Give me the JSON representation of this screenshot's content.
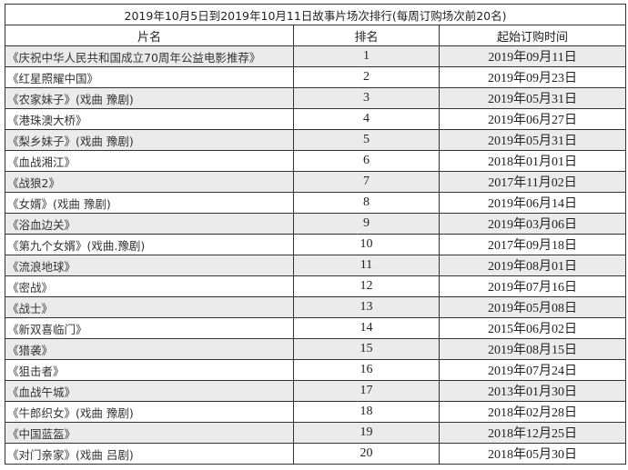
{
  "title": "2019年10月5日到2019年10月11日故事片场次排行(每周订购场次前20名)",
  "columns": [
    "片名",
    "排名",
    "起始订购时间"
  ],
  "rows": [
    {
      "name": "《庆祝中华人民共和国成立70周年公益电影推荐》",
      "rank": "1",
      "date": "2019年09月11日"
    },
    {
      "name": "《红星照耀中国》",
      "rank": "2",
      "date": "2019年09月23日"
    },
    {
      "name": "《农家妹子》(戏曲 豫剧)",
      "rank": "3",
      "date": "2019年05月31日"
    },
    {
      "name": "《港珠澳大桥》",
      "rank": "4",
      "date": "2019年06月27日"
    },
    {
      "name": "《梨乡妹子》(戏曲 豫剧)",
      "rank": "5",
      "date": "2019年05月31日"
    },
    {
      "name": "《血战湘江》",
      "rank": "6",
      "date": "2018年01月01日"
    },
    {
      "name": "《战狼2》",
      "rank": "7",
      "date": "2017年11月02日"
    },
    {
      "name": "《女婿》(戏曲 豫剧)",
      "rank": "8",
      "date": "2019年06月14日"
    },
    {
      "name": "《浴血边关》",
      "rank": "9",
      "date": "2019年03月06日"
    },
    {
      "name": "《第九个女婿》(戏曲.豫剧)",
      "rank": "10",
      "date": "2017年09月18日"
    },
    {
      "name": "《流浪地球》",
      "rank": "11",
      "date": "2019年08月01日"
    },
    {
      "name": "《密战》",
      "rank": "12",
      "date": "2019年07月16日"
    },
    {
      "name": "《战士》",
      "rank": "13",
      "date": "2019年05月08日"
    },
    {
      "name": "《新双喜临门》",
      "rank": "14",
      "date": "2015年06月02日"
    },
    {
      "name": "《猎袭》",
      "rank": "15",
      "date": "2019年08月15日"
    },
    {
      "name": "《狙击者》",
      "rank": "16",
      "date": "2019年07月24日"
    },
    {
      "name": "《血战午城》",
      "rank": "17",
      "date": "2013年01月30日"
    },
    {
      "name": "《牛郎织女》(戏曲 豫剧)",
      "rank": "18",
      "date": "2018年02月28日"
    },
    {
      "name": "《中国蓝盔》",
      "rank": "19",
      "date": "2018年12月25日"
    },
    {
      "name": "《对门亲家》(戏曲 吕剧)",
      "rank": "20",
      "date": "2018年05月30日"
    }
  ]
}
